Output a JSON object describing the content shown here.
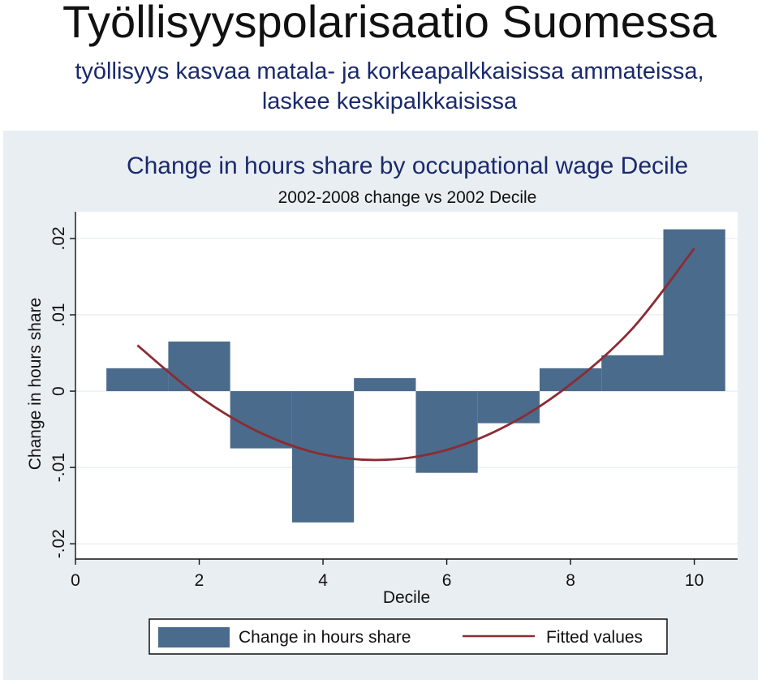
{
  "header": {
    "title": "Työllisyyspolarisaatio Suomessa",
    "subtitle_line1": "työllisyys kasvaa matala- ja korkeapalkkaisissa ammateissa,",
    "subtitle_line2": "laskee keskipalkkaisissa"
  },
  "colors": {
    "bar_fill": "#4a6b8c",
    "fit_line": "#8b2c33",
    "panel_bg": "#e9eef3",
    "plot_bg": "#ffffff",
    "title_text": "#1a2a6c"
  },
  "chart_data": {
    "type": "bar",
    "title": "Change in hours share by occupational wage Decile",
    "subtitle": "2002-2008 change vs 2002 Decile",
    "xlabel": "Decile",
    "ylabel": "Change in hours share",
    "x": [
      1,
      2,
      3,
      4,
      5,
      6,
      7,
      8,
      9,
      10
    ],
    "values": [
      0.003,
      0.0065,
      -0.0075,
      -0.0172,
      0.0017,
      -0.0107,
      -0.0042,
      0.003,
      0.0047,
      0.0212
    ],
    "fitted": {
      "x": [
        1,
        2,
        3,
        4,
        5,
        6,
        7,
        8,
        9,
        10
      ],
      "values": [
        0.006,
        -0.0007,
        -0.0055,
        -0.0083,
        -0.009,
        -0.0077,
        -0.0044,
        0.0009,
        0.0082,
        0.0187
      ]
    },
    "xlim": [
      0,
      10.7
    ],
    "ylim": [
      -0.022,
      0.0235
    ],
    "xticks": [
      0,
      2,
      4,
      6,
      8,
      10
    ],
    "xtick_labels": [
      "0",
      "2",
      "4",
      "6",
      "8",
      "10"
    ],
    "yticks": [
      -0.02,
      -0.01,
      0,
      0.01,
      0.02
    ],
    "ytick_labels": [
      "-.02",
      "-.01",
      "0",
      ".01",
      ".02"
    ],
    "grid": true,
    "legend": {
      "position": "bottom",
      "entries": [
        "Change in hours share",
        "Fitted values"
      ]
    }
  }
}
